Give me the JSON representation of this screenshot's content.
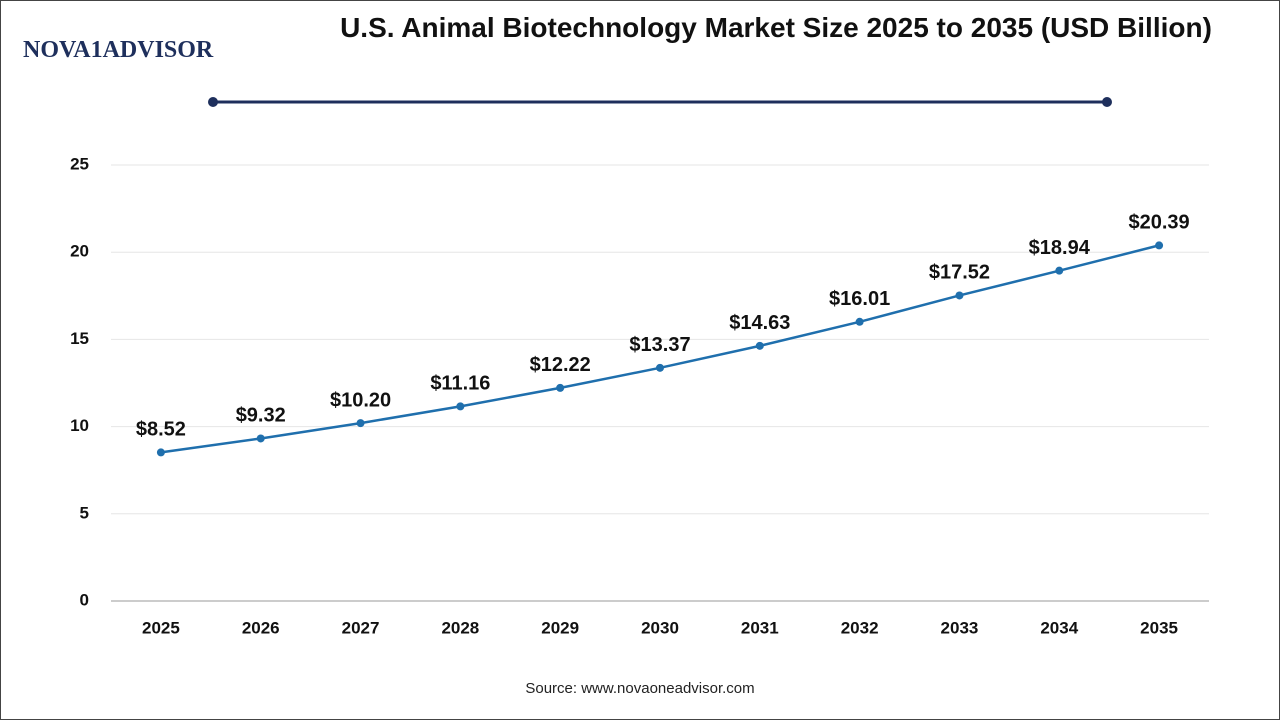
{
  "logo": "NOVA1ADVISOR",
  "source": "Source: www.novaoneadvisor.com",
  "chart_data": {
    "type": "line",
    "title": "U.S. Animal Biotechnology Market Size 2025 to 2035 (USD Billion)",
    "categories": [
      "2025",
      "2026",
      "2027",
      "2028",
      "2029",
      "2030",
      "2031",
      "2032",
      "2033",
      "2034",
      "2035"
    ],
    "values": [
      8.52,
      9.32,
      10.2,
      11.16,
      12.22,
      13.37,
      14.63,
      16.01,
      17.52,
      18.94,
      20.39
    ],
    "value_labels": [
      "$8.52",
      "$9.32",
      "$10.20",
      "$11.16",
      "$12.22",
      "$13.37",
      "$14.63",
      "$16.01",
      "$17.52",
      "$18.94",
      "$20.39"
    ],
    "color": "#1f6fad",
    "ylim": [
      0,
      25
    ],
    "yticks": [
      0,
      5,
      10,
      15,
      20,
      25
    ],
    "grid": true
  }
}
